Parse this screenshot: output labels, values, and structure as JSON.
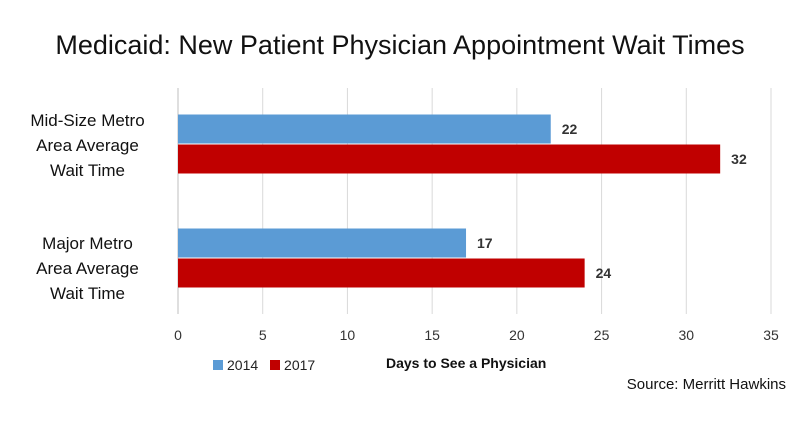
{
  "chart_data": {
    "type": "bar",
    "orientation": "horizontal",
    "title": "Medicaid: New Patient Physician Appointment Wait Times",
    "xlabel": "Days to See a Physician",
    "ylabel": "",
    "categories": [
      [
        "Mid-Size Metro",
        "Area Average",
        "Wait Time"
      ],
      [
        "Major Metro",
        "Area Average",
        "Wait Time"
      ]
    ],
    "series": [
      {
        "name": "2014",
        "color": "#5b9bd5",
        "values": [
          22,
          17
        ]
      },
      {
        "name": "2017",
        "color": "#c00000",
        "values": [
          32,
          24
        ]
      }
    ],
    "xlim": [
      0,
      35
    ],
    "ticks": [
      0,
      5,
      10,
      15,
      20,
      25,
      30,
      35
    ],
    "grid": true,
    "legend_position": "bottom-left"
  },
  "source": "Source: Merritt Hawkins"
}
